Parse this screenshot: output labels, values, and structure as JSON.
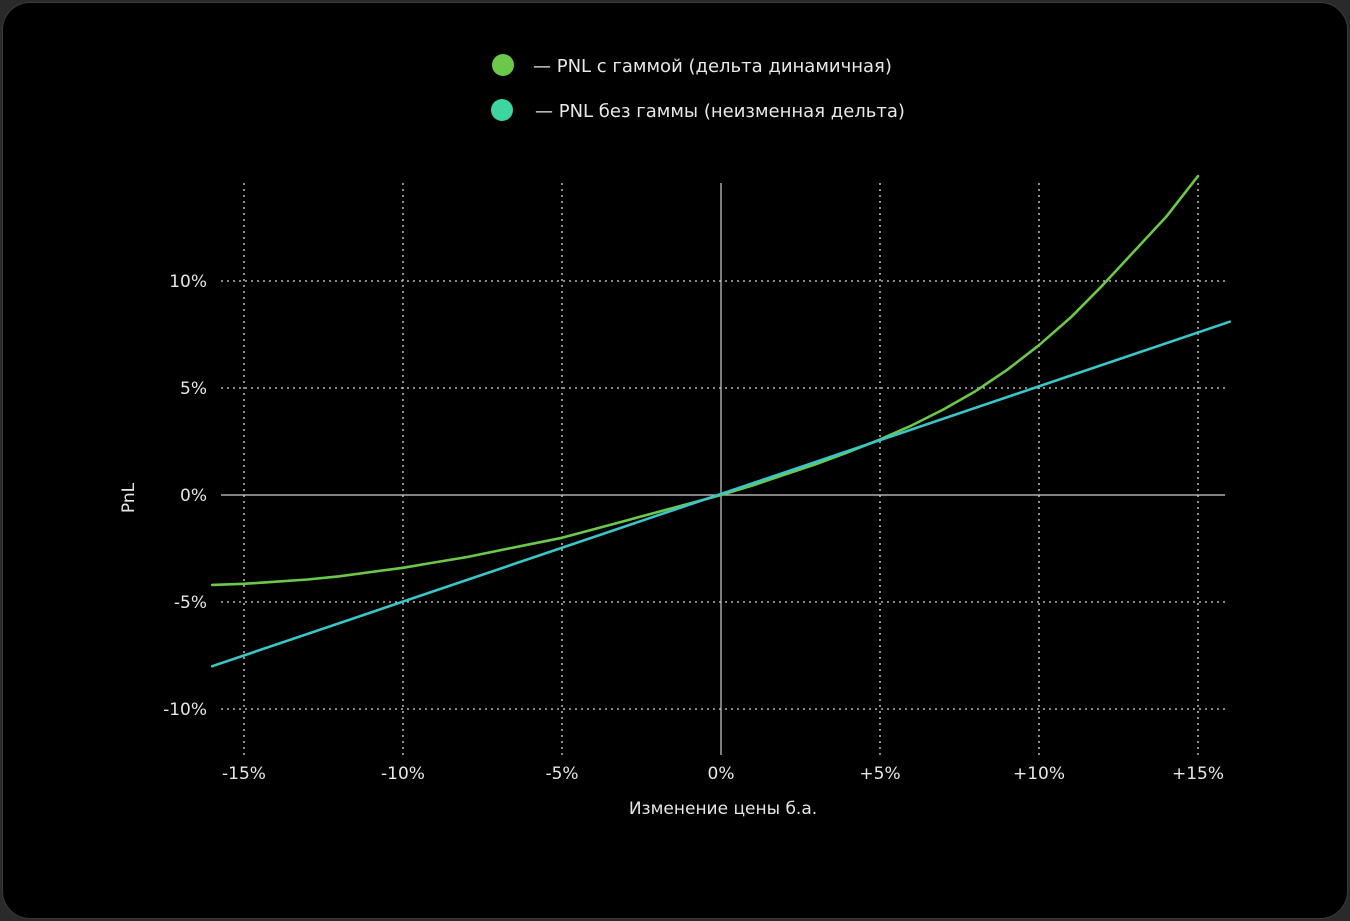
{
  "legend": {
    "items": [
      {
        "label": "— PNL с гаммой (дельта динамичная)",
        "color": "#6cc84a"
      },
      {
        "label": "— PNL без гаммы (неизменная дельта)",
        "color": "#3dd6a0"
      }
    ]
  },
  "chart_data": {
    "type": "line",
    "xlabel": "Изменение цены б.а.",
    "ylabel": "PnL",
    "xlim": [
      -16,
      16
    ],
    "ylim": [
      -10.5,
      14
    ],
    "x_ticks": [
      {
        "value": -15,
        "label": "-15%"
      },
      {
        "value": -10,
        "label": "-10%"
      },
      {
        "value": -5,
        "label": "-5%"
      },
      {
        "value": 0,
        "label": "0%"
      },
      {
        "value": 5,
        "label": "+5%"
      },
      {
        "value": 10,
        "label": "+10%"
      },
      {
        "value": 15,
        "label": "+15%"
      }
    ],
    "y_ticks": [
      {
        "value": 10,
        "label": "10%"
      },
      {
        "value": 5,
        "label": "5%"
      },
      {
        "value": 0,
        "label": "0%"
      },
      {
        "value": -5,
        "label": "-5%"
      },
      {
        "value": -10,
        "label": "-10%"
      }
    ],
    "grid": true,
    "legend_position": "top-center",
    "series": [
      {
        "name": "PNL с гаммой (дельта динамичная)",
        "color": "#6cc84a",
        "x": [
          -16,
          -15,
          -14,
          -13,
          -12,
          -11,
          -10,
          -9,
          -8,
          -7,
          -6,
          -5,
          -4,
          -3,
          -2,
          -1,
          0,
          1,
          2,
          3,
          4,
          5,
          6,
          7,
          8,
          9,
          10,
          11,
          12,
          13,
          14,
          15
        ],
        "y": [
          -4.2,
          -4.15,
          -4.05,
          -3.95,
          -3.8,
          -3.6,
          -3.4,
          -3.15,
          -2.9,
          -2.6,
          -2.3,
          -2.0,
          -1.6,
          -1.2,
          -0.8,
          -0.4,
          0,
          0.45,
          0.95,
          1.45,
          2.0,
          2.6,
          3.25,
          4.0,
          4.85,
          5.85,
          7.0,
          8.3,
          9.8,
          11.4,
          13.0,
          14.9
        ]
      },
      {
        "name": "PNL без гаммы (неизменная дельта)",
        "color": "#3ac6c8",
        "x": [
          -16,
          16
        ],
        "y": [
          -8.0,
          8.1
        ]
      }
    ]
  }
}
